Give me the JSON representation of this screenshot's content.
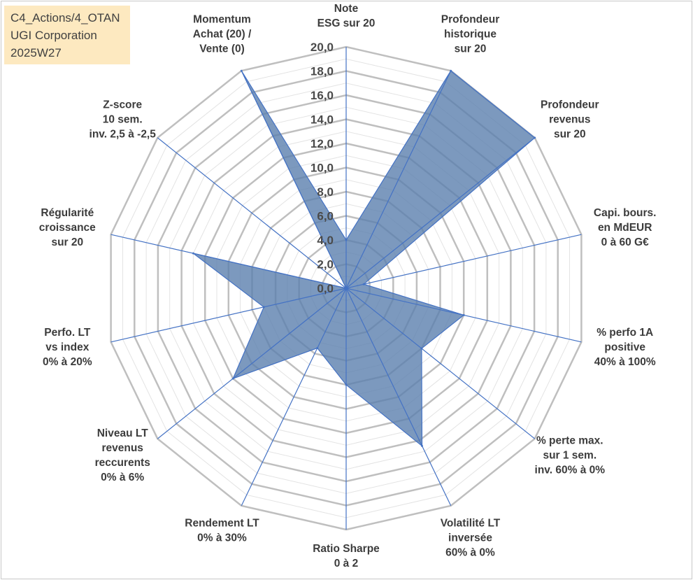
{
  "title_box": {
    "line1": "C4_Actions/4_OTAN",
    "line2": "UGI Corporation",
    "line3": "2025W27"
  },
  "chart_data": {
    "type": "radar",
    "axes": [
      [
        "Note",
        "ESG sur 20"
      ],
      [
        "Profondeur",
        "historique",
        "sur 20"
      ],
      [
        "Profondeur",
        "revenus",
        "sur 20"
      ],
      [
        "Capi. bours.",
        "en MdEUR",
        "0 à 60 G€"
      ],
      [
        "% perfo 1A",
        "positive",
        "40% à 100%"
      ],
      [
        "% perte max.",
        "sur 1 sem.",
        "inv. 60% à 0%"
      ],
      [
        "Volatilité LT",
        "inversée",
        "60% à 0%"
      ],
      [
        "Ratio Sharpe",
        "0 à 2"
      ],
      [
        "Rendement LT",
        "0% à 30%"
      ],
      [
        "Niveau LT",
        "revenus",
        "reccurents",
        "0% à 6%"
      ],
      [
        "Perfo. LT",
        "vs index",
        "0% à 20%"
      ],
      [
        "Régularité",
        "croissance",
        "sur 20"
      ],
      [
        "Z-score",
        "10 sem.",
        "inv. 2,5 à -2,5"
      ],
      [
        "Momentum",
        "Achat (20) /",
        "Vente (0)"
      ]
    ],
    "series": [
      {
        "values": [
          4.0,
          20.0,
          20.0,
          1.5,
          10.0,
          8.0,
          14.5,
          8.0,
          5.5,
          12.0,
          7.0,
          13.0,
          0.0,
          20.0
        ]
      }
    ],
    "ylim": [
      0,
      20
    ],
    "tick_labels": [
      "0,0",
      "2,0",
      "4,0",
      "6,0",
      "8,0",
      "10,0",
      "12,0",
      "14,0",
      "16,0",
      "18,0",
      "20,0"
    ],
    "colors": {
      "fill": "#5b7fae",
      "stroke": "#4472c4",
      "spoke": "#4472c4",
      "grid_major": "#bfbfbf",
      "grid_minor": "#e3e3e3"
    }
  }
}
